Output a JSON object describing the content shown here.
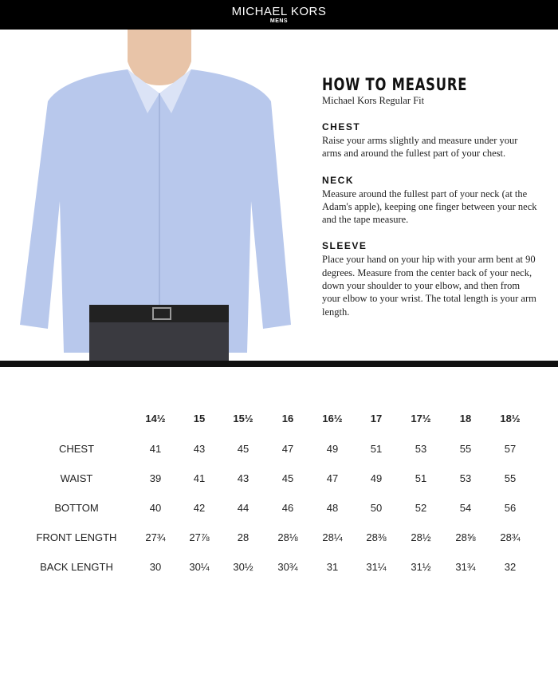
{
  "header": {
    "brand": "MICHAEL KORS",
    "subbrand": "MENS"
  },
  "guide": {
    "title": "HOW TO MEASURE",
    "subtitle": "Michael Kors Regular Fit",
    "sections": [
      {
        "heading": "CHEST",
        "text": "Raise your arms slightly and measure under your arms and around the fullest part of your chest."
      },
      {
        "heading": "NECK",
        "text": "Measure around the fullest part of your neck (at the Adam's apple), keeping one finger between your neck and the tape measure."
      },
      {
        "heading": "SLEEVE",
        "text": "Place your hand on your hip with your arm bent at 90 degrees. Measure from the center back of your neck, down your shoulder to your elbow, and then from your elbow to your wrist. The total length is your arm length."
      }
    ]
  },
  "table": {
    "sizes": [
      "14½",
      "15",
      "15½",
      "16",
      "16½",
      "17",
      "17½",
      "18",
      "18½"
    ],
    "rows": [
      {
        "label": "CHEST",
        "values": [
          "41",
          "43",
          "45",
          "47",
          "49",
          "51",
          "53",
          "55",
          "57"
        ]
      },
      {
        "label": "WAIST",
        "values": [
          "39",
          "41",
          "43",
          "45",
          "47",
          "49",
          "51",
          "53",
          "55"
        ]
      },
      {
        "label": "BOTTOM",
        "values": [
          "40",
          "42",
          "44",
          "46",
          "48",
          "50",
          "52",
          "54",
          "56"
        ]
      },
      {
        "label": "FRONT LENGTH",
        "values": [
          "27¾",
          "27⅞",
          "28",
          "28⅛",
          "28¼",
          "28⅜",
          "28½",
          "28⅝",
          "28¾"
        ]
      },
      {
        "label": "BACK LENGTH",
        "values": [
          "30",
          "30¼",
          "30½",
          "30¾",
          "31",
          "31¼",
          "31½",
          "31¾",
          "32"
        ]
      }
    ]
  }
}
